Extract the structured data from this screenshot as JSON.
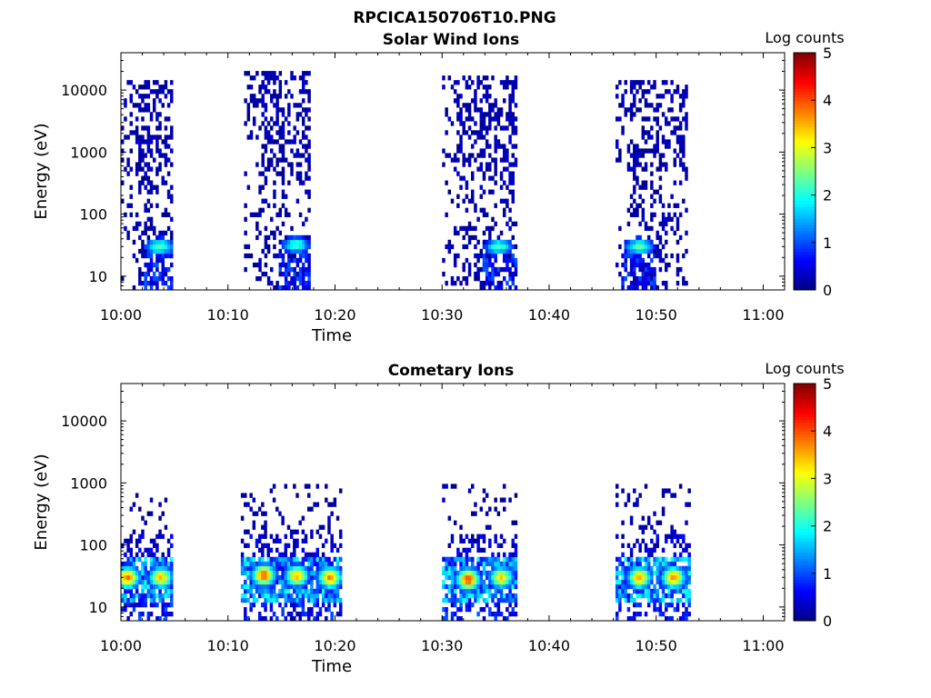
{
  "figure": {
    "title": "RPCICA150706T10.PNG"
  },
  "chart_data": [
    {
      "type": "heatmap",
      "title": "Solar Wind Ions",
      "xlabel": "Time",
      "ylabel": "Energy (eV)",
      "x_ticks": [
        "10:00",
        "10:10",
        "10:20",
        "10:30",
        "10:40",
        "10:50",
        "11:00"
      ],
      "x_range_minutes": [
        0,
        62
      ],
      "y_scale": "log",
      "y_ticks": [
        10,
        100,
        1000,
        10000
      ],
      "y_range": [
        6,
        40000
      ],
      "colorbar": {
        "label": "Log counts",
        "ticks": [
          0,
          1,
          2,
          3,
          4,
          5
        ],
        "range": [
          0,
          5
        ],
        "colormap": "jet"
      },
      "blocks": [
        {
          "t_start": 0.0,
          "t_end": 4.7,
          "core_center": 3.5,
          "core_energy": 30,
          "core_peak": 2.2,
          "emax": 15000
        },
        {
          "t_start": 11.5,
          "t_end": 17.5,
          "core_center": 16.2,
          "core_energy": 32,
          "core_peak": 2.0,
          "emax": 20000
        },
        {
          "t_start": 30.0,
          "t_end": 36.8,
          "core_center": 35.2,
          "core_energy": 30,
          "core_peak": 2.1,
          "emax": 18000
        },
        {
          "t_start": 46.2,
          "t_end": 52.8,
          "core_center": 48.3,
          "core_energy": 30,
          "core_peak": 2.2,
          "emax": 15000
        }
      ]
    },
    {
      "type": "heatmap",
      "title": "Cometary Ions",
      "xlabel": "Time",
      "ylabel": "Energy (eV)",
      "x_ticks": [
        "10:00",
        "10:10",
        "10:20",
        "10:30",
        "10:40",
        "10:50",
        "11:00"
      ],
      "x_range_minutes": [
        0,
        62
      ],
      "y_scale": "log",
      "y_ticks": [
        10,
        100,
        1000,
        10000
      ],
      "y_range": [
        6,
        40000
      ],
      "colorbar": {
        "label": "Log counts",
        "ticks": [
          0,
          1,
          2,
          3,
          4,
          5
        ],
        "range": [
          0,
          5
        ],
        "colormap": "jet"
      },
      "hotspots": [
        {
          "t": 0.5,
          "energy": 30,
          "peak": 3.7
        },
        {
          "t": 3.6,
          "energy": 30,
          "peak": 3.3
        },
        {
          "t": 13.2,
          "energy": 33,
          "peak": 3.8
        },
        {
          "t": 16.3,
          "energy": 32,
          "peak": 3.4
        },
        {
          "t": 19.4,
          "energy": 30,
          "peak": 3.6
        },
        {
          "t": 32.3,
          "energy": 28,
          "peak": 3.9
        },
        {
          "t": 35.4,
          "energy": 30,
          "peak": 3.2
        },
        {
          "t": 48.3,
          "energy": 30,
          "peak": 3.5
        },
        {
          "t": 51.5,
          "energy": 30,
          "peak": 3.6
        }
      ],
      "blocks": [
        {
          "t_start": 0.0,
          "t_end": 4.7,
          "emax": 700
        },
        {
          "t_start": 11.2,
          "t_end": 20.5,
          "emax": 1000
        },
        {
          "t_start": 30.0,
          "t_end": 36.8,
          "emax": 1000
        },
        {
          "t_start": 46.2,
          "t_end": 53.0,
          "emax": 1000
        }
      ]
    }
  ]
}
